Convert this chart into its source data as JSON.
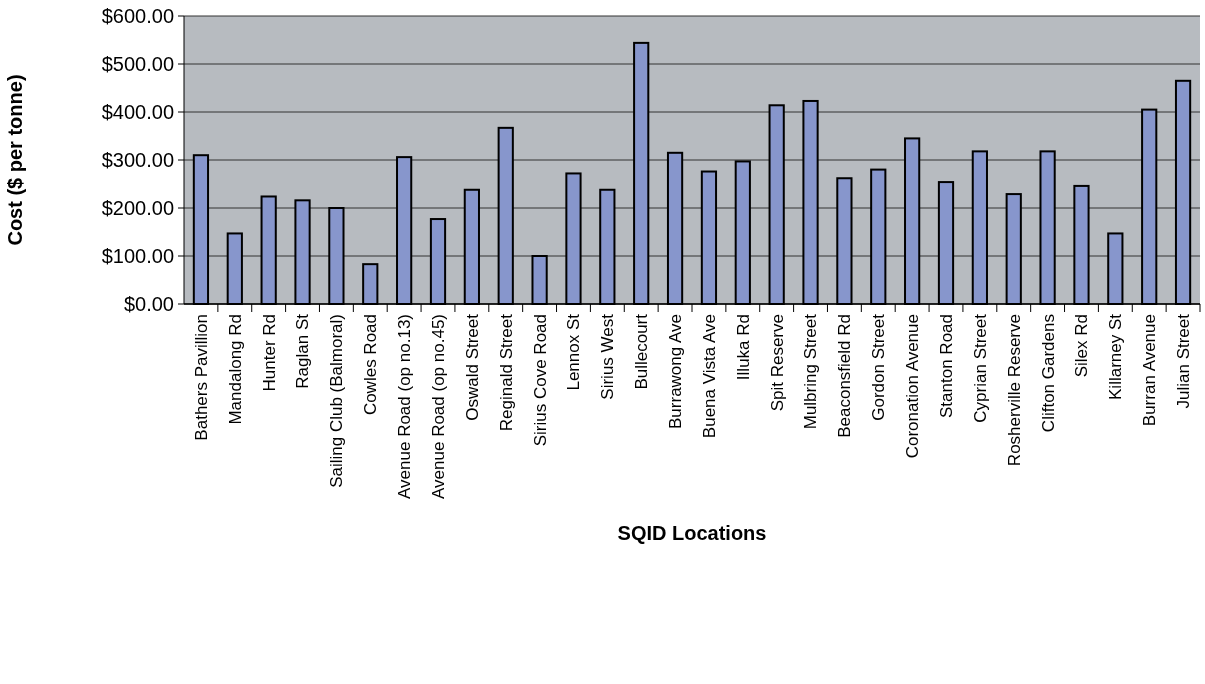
{
  "chart_data": {
    "type": "bar",
    "xlabel": "SQID Locations",
    "ylabel": "Cost ($ per tonne)",
    "categories": [
      "Bathers Pavillion",
      "Mandalong Rd",
      "Hunter Rd",
      "Raglan St",
      "Sailing Club (Balmoral)",
      "Cowles Road",
      "Avenue Road (op no.13)",
      "Avenue Road (op no.45)",
      "Oswald Street",
      "Reginald Street",
      "Sirius Cove Road",
      "Lennox St",
      "Sirius West",
      "Bullecourt",
      "Burrawong Ave",
      "Buena Vista Ave",
      "Illuka Rd",
      "Spit Reserve",
      "Mulbring Street",
      "Beaconsfield Rd",
      "Gordon Street",
      "Coronation Avenue",
      "Stanton Road",
      "Cyprian Street",
      "Rosherville Reserve",
      "Clifton Gardens",
      "Silex Rd",
      "Killarney St",
      "Burran Avenue",
      "Julian Street"
    ],
    "values": [
      310,
      147,
      224,
      216,
      200,
      83,
      306,
      177,
      238,
      367,
      100,
      272,
      238,
      544,
      315,
      276,
      297,
      414,
      423,
      262,
      280,
      345,
      254,
      318,
      229,
      318,
      246,
      147,
      405,
      465
    ],
    "color": "#8796cc",
    "ylim": [
      0,
      600
    ],
    "yticks": [
      {
        "value": 0,
        "label": "$0.00"
      },
      {
        "value": 100,
        "label": "$100.00"
      },
      {
        "value": 200,
        "label": "$200.00"
      },
      {
        "value": 300,
        "label": "$300.00"
      },
      {
        "value": 400,
        "label": "$400.00"
      },
      {
        "value": 500,
        "label": "$500.00"
      },
      {
        "value": 600,
        "label": "$600.00"
      }
    ],
    "grid": "y"
  }
}
